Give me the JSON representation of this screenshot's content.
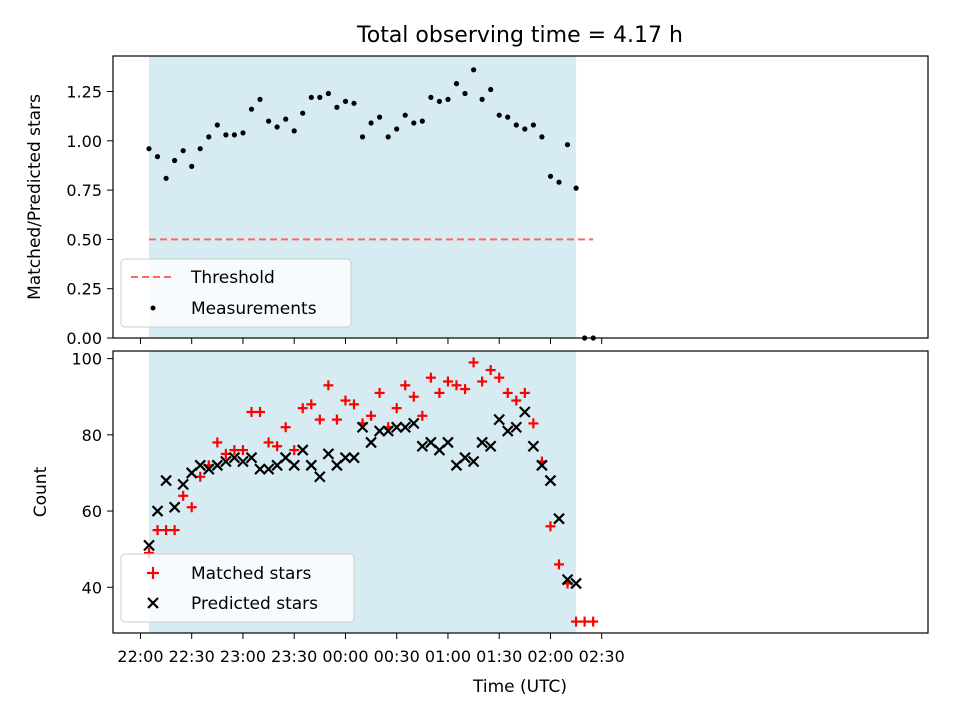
{
  "chart_data": [
    {
      "type": "scatter",
      "title": "Total observing time = 4.17 h",
      "ylabel": "Matched/Predicted stars",
      "xlabel": "",
      "ylim": [
        0,
        1.43
      ],
      "yticks": [
        "0.00",
        "0.25",
        "0.50",
        "0.75",
        "1.00",
        "1.25"
      ],
      "legend_position": "lower-left",
      "shaded_interval": [
        "22:05",
        "02:15"
      ],
      "shade_color": "#add8e6",
      "threshold": {
        "name": "Threshold",
        "value": 0.5,
        "color": "#ff6666",
        "x_range": [
          "22:05",
          "02:25"
        ]
      },
      "series": [
        {
          "name": "Measurements",
          "color": "#000000",
          "x": [
            "22:05",
            "22:10",
            "22:15",
            "22:20",
            "22:25",
            "22:30",
            "22:35",
            "22:40",
            "22:45",
            "22:50",
            "22:55",
            "23:00",
            "23:05",
            "23:10",
            "23:15",
            "23:20",
            "23:25",
            "23:30",
            "23:35",
            "23:40",
            "23:45",
            "23:50",
            "23:55",
            "00:00",
            "00:05",
            "00:10",
            "00:15",
            "00:20",
            "00:25",
            "00:30",
            "00:35",
            "00:40",
            "00:45",
            "00:50",
            "00:55",
            "01:00",
            "01:05",
            "01:10",
            "01:15",
            "01:20",
            "01:25",
            "01:30",
            "01:35",
            "01:40",
            "01:45",
            "01:50",
            "01:55",
            "02:00",
            "02:05",
            "02:10",
            "02:15",
            "02:20",
            "02:25"
          ],
          "y": [
            0.96,
            0.92,
            0.81,
            0.9,
            0.95,
            0.87,
            0.96,
            1.02,
            1.08,
            1.03,
            1.03,
            1.04,
            1.16,
            1.21,
            1.1,
            1.07,
            1.11,
            1.05,
            1.14,
            1.22,
            1.22,
            1.24,
            1.17,
            1.2,
            1.19,
            1.02,
            1.09,
            1.12,
            1.02,
            1.06,
            1.13,
            1.09,
            1.1,
            1.22,
            1.2,
            1.21,
            1.29,
            1.24,
            1.36,
            1.21,
            1.26,
            1.13,
            1.12,
            1.08,
            1.06,
            1.08,
            1.02,
            0.82,
            0.79,
            0.98,
            0.76,
            0.0,
            0.0
          ]
        }
      ]
    },
    {
      "type": "scatter",
      "xlabel": "Time (UTC)",
      "ylabel": "Count",
      "ylim": [
        28,
        102
      ],
      "yticks": [
        "40",
        "60",
        "80",
        "100"
      ],
      "xticks": [
        "22:00",
        "22:30",
        "23:00",
        "23:30",
        "00:00",
        "00:30",
        "01:00",
        "01:30",
        "02:00",
        "02:30"
      ],
      "legend_position": "lower-left",
      "shaded_interval": [
        "22:05",
        "02:15"
      ],
      "series": [
        {
          "name": "Matched stars",
          "marker": "plus",
          "color": "#ff0000",
          "x": [
            "22:05",
            "22:10",
            "22:15",
            "22:20",
            "22:25",
            "22:30",
            "22:35",
            "22:40",
            "22:45",
            "22:50",
            "22:55",
            "23:00",
            "23:05",
            "23:10",
            "23:15",
            "23:20",
            "23:25",
            "23:30",
            "23:35",
            "23:40",
            "23:45",
            "23:50",
            "23:55",
            "00:00",
            "00:05",
            "00:10",
            "00:15",
            "00:20",
            "00:25",
            "00:30",
            "00:35",
            "00:40",
            "00:45",
            "00:50",
            "00:55",
            "01:00",
            "01:05",
            "01:10",
            "01:15",
            "01:20",
            "01:25",
            "01:30",
            "01:35",
            "01:40",
            "01:45",
            "01:50",
            "01:55",
            "02:00",
            "02:05",
            "02:10",
            "02:15",
            "02:20",
            "02:25"
          ],
          "y": [
            49,
            55,
            55,
            55,
            64,
            61,
            69,
            72,
            78,
            75,
            76,
            76,
            86,
            86,
            78,
            77,
            82,
            76,
            87,
            88,
            84,
            93,
            84,
            89,
            88,
            83,
            85,
            91,
            82,
            87,
            93,
            90,
            85,
            95,
            91,
            94,
            93,
            92,
            99,
            94,
            97,
            95,
            91,
            89,
            91,
            83,
            73,
            56,
            46,
            41,
            31,
            31,
            31
          ]
        },
        {
          "name": "Predicted stars",
          "marker": "x",
          "color": "#000000",
          "x": [
            "22:05",
            "22:10",
            "22:15",
            "22:20",
            "22:25",
            "22:30",
            "22:35",
            "22:40",
            "22:45",
            "22:50",
            "22:55",
            "23:00",
            "23:05",
            "23:10",
            "23:15",
            "23:20",
            "23:25",
            "23:30",
            "23:35",
            "23:40",
            "23:45",
            "23:50",
            "23:55",
            "00:00",
            "00:05",
            "00:10",
            "00:15",
            "00:20",
            "00:25",
            "00:30",
            "00:35",
            "00:40",
            "00:45",
            "00:50",
            "00:55",
            "01:00",
            "01:05",
            "01:10",
            "01:15",
            "01:20",
            "01:25",
            "01:30",
            "01:35",
            "01:40",
            "01:45",
            "01:50",
            "01:55",
            "02:00",
            "02:05",
            "02:10",
            "02:15"
          ],
          "y": [
            51,
            60,
            68,
            61,
            67,
            70,
            72,
            71,
            72,
            73,
            74,
            73,
            74,
            71,
            71,
            72,
            74,
            72,
            76,
            72,
            69,
            75,
            72,
            74,
            74,
            82,
            78,
            81,
            81,
            82,
            82,
            83,
            77,
            78,
            76,
            78,
            72,
            74,
            73,
            78,
            77,
            84,
            81,
            82,
            86,
            77,
            72,
            68,
            58,
            42,
            41
          ]
        }
      ]
    }
  ]
}
